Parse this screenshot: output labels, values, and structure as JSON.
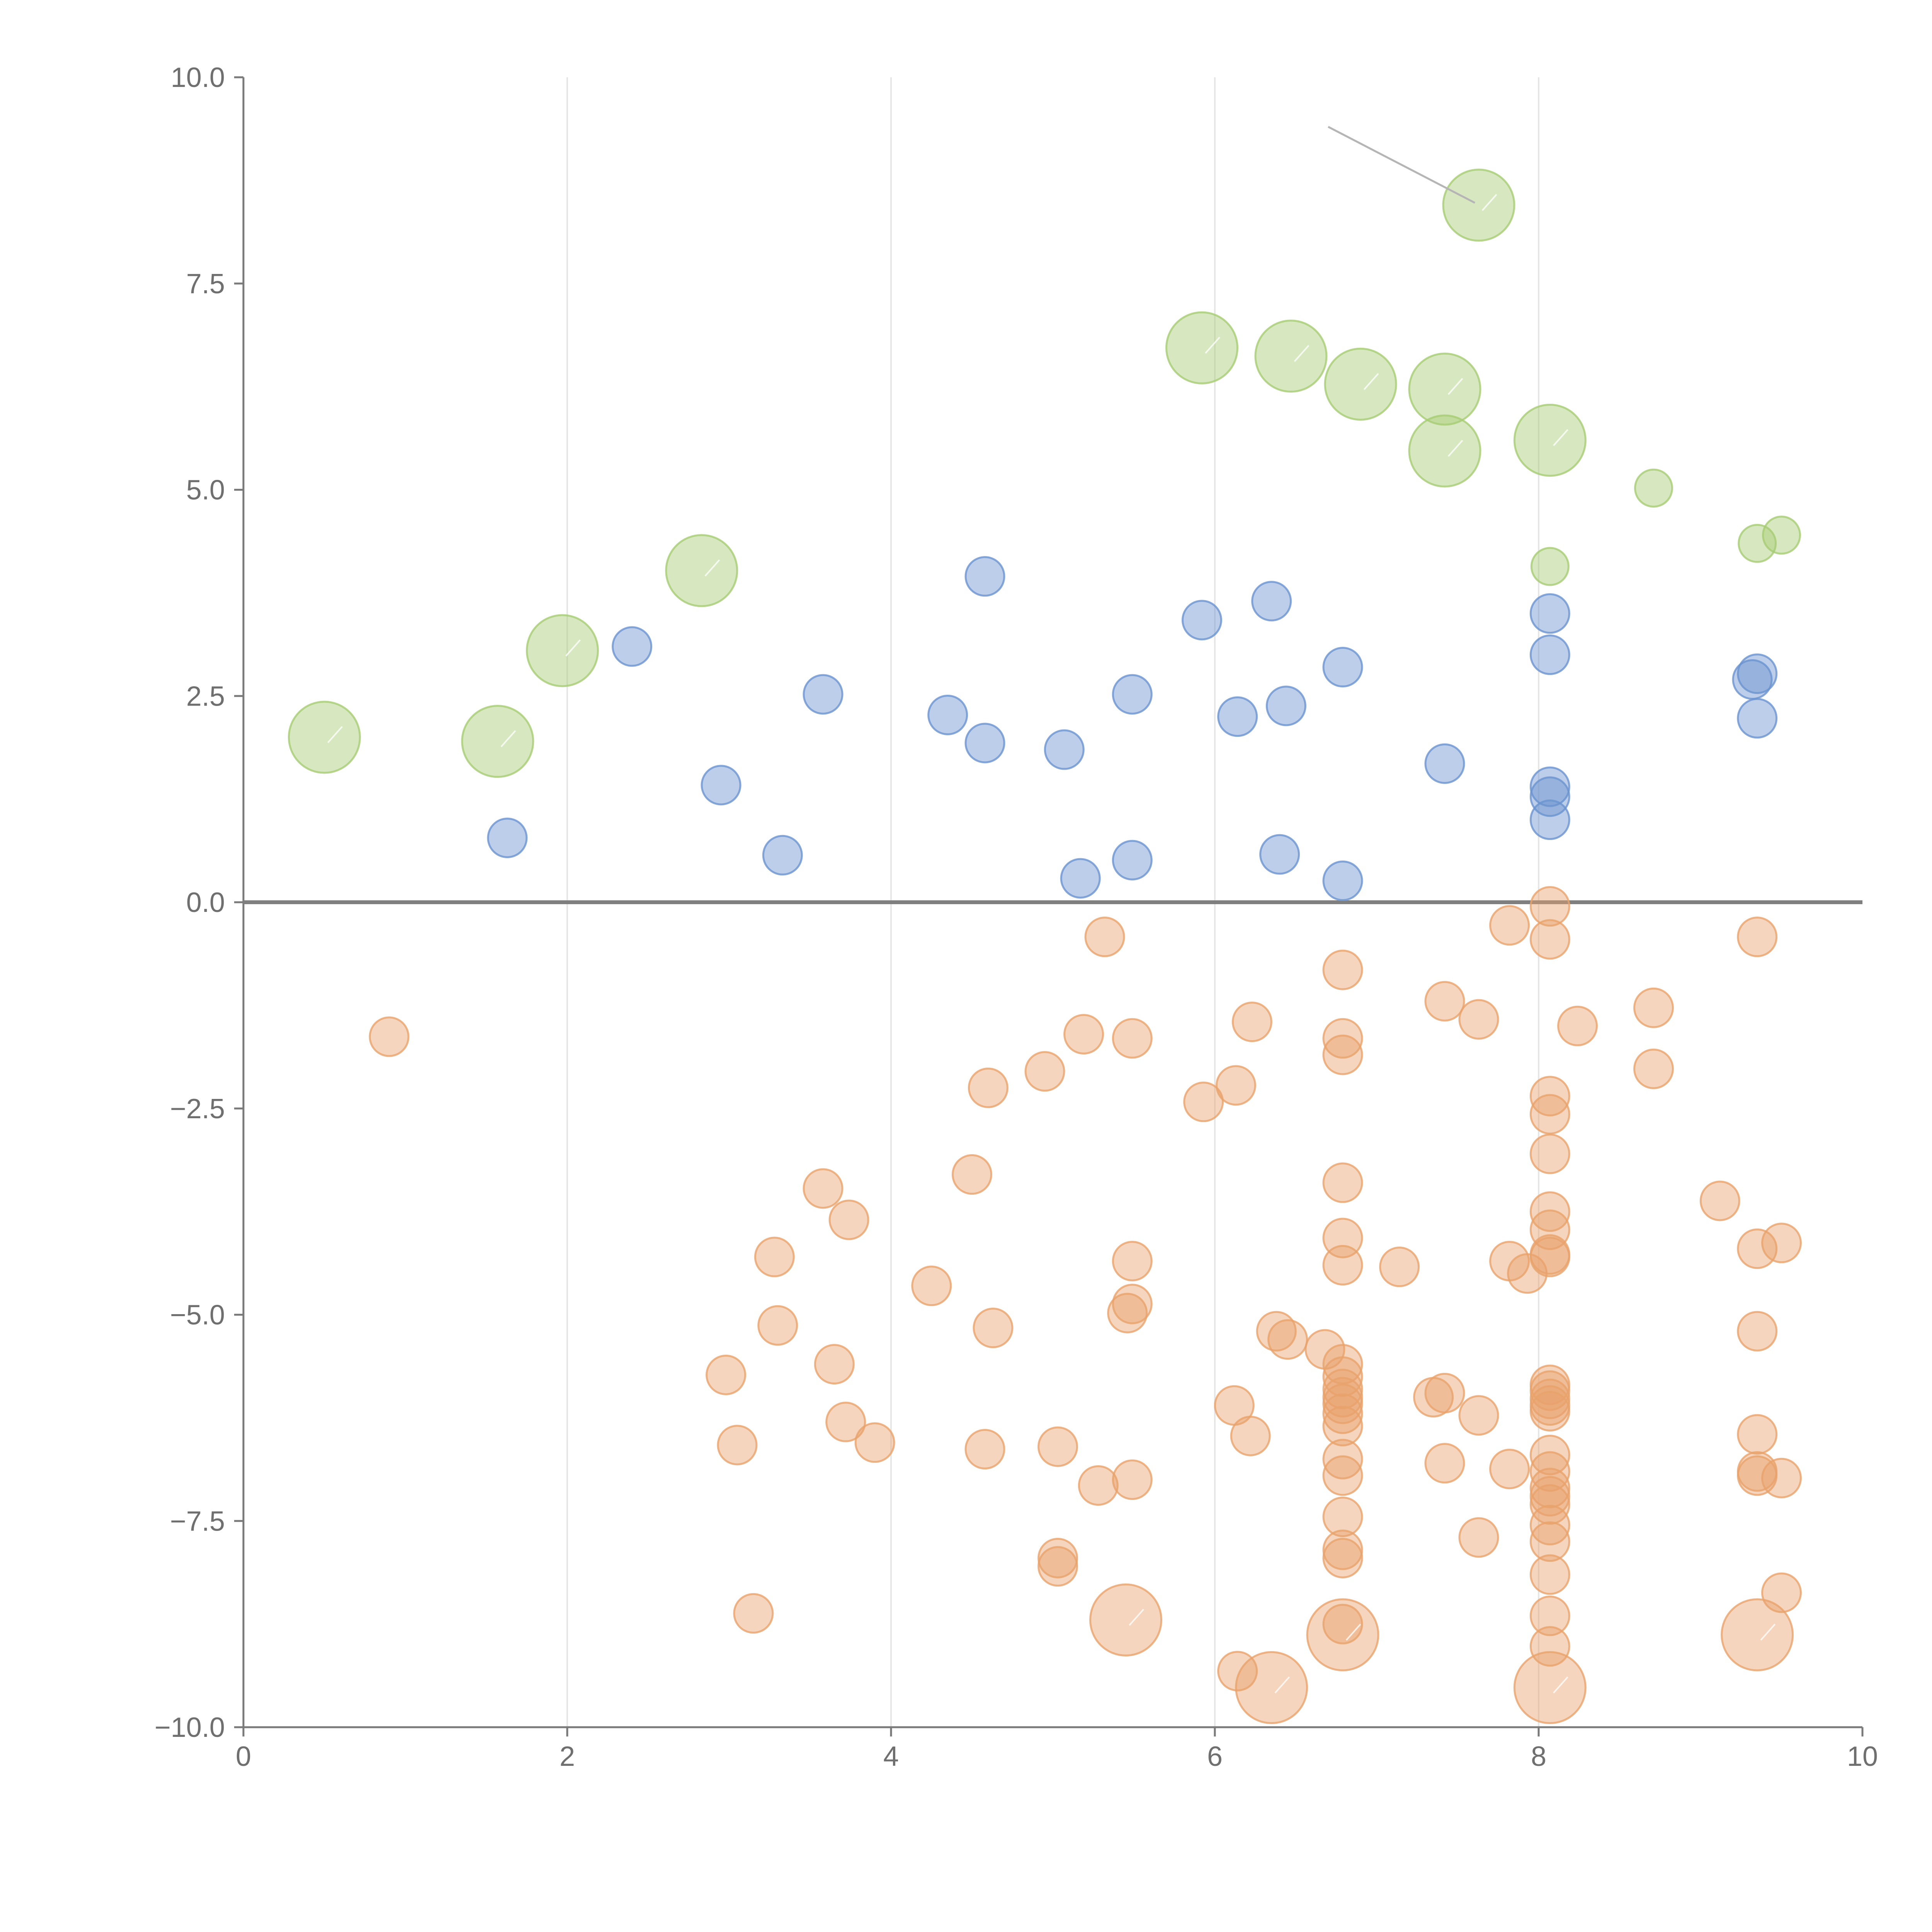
{
  "chart_data": {
    "type": "scatter",
    "title": "",
    "xlabel": "",
    "ylabel": "",
    "xlim": [
      0,
      10
    ],
    "ylim": [
      -10,
      10
    ],
    "x_ticks": [
      0,
      2,
      4,
      6,
      8,
      10
    ],
    "x_tick_labels": [
      "0",
      "2",
      "4",
      "6",
      "8",
      "10"
    ],
    "y_ticks": [
      -10,
      -7.5,
      -5,
      -2.5,
      0,
      2.5,
      5,
      7.5,
      10
    ],
    "y_tick_labels": [
      "−10.0",
      "−7.5",
      "−5.0",
      "−2.5",
      "0.0",
      "2.5",
      "5.0",
      "7.5",
      "10.0"
    ],
    "grid": "vertical",
    "zero_line": true,
    "series": [
      {
        "name": "green",
        "color": "#a6cc73",
        "points": [
          {
            "x": 0.5,
            "y": 2.0,
            "size": 2
          },
          {
            "x": 1.57,
            "y": 1.95,
            "size": 2
          },
          {
            "x": 1.97,
            "y": 3.05,
            "size": 2
          },
          {
            "x": 2.83,
            "y": 4.02,
            "size": 2
          },
          {
            "x": 5.92,
            "y": 6.72,
            "size": 2
          },
          {
            "x": 6.47,
            "y": 6.62,
            "size": 2
          },
          {
            "x": 6.9,
            "y": 6.28,
            "size": 2
          },
          {
            "x": 7.42,
            "y": 6.22,
            "size": 2
          },
          {
            "x": 7.42,
            "y": 5.47,
            "size": 2
          },
          {
            "x": 8.07,
            "y": 5.6,
            "size": 2
          },
          {
            "x": 7.63,
            "y": 8.45,
            "size": 2
          },
          {
            "x": 8.71,
            "y": 5.02,
            "size": 1
          },
          {
            "x": 9.35,
            "y": 4.35,
            "size": 1
          },
          {
            "x": 9.5,
            "y": 4.45,
            "size": 1
          },
          {
            "x": 8.07,
            "y": 4.07,
            "size": 1
          }
        ]
      },
      {
        "name": "blue",
        "color": "#6a93cf",
        "points": [
          {
            "x": 1.63,
            "y": 0.78
          },
          {
            "x": 2.4,
            "y": 3.1
          },
          {
            "x": 2.95,
            "y": 1.42
          },
          {
            "x": 3.33,
            "y": 0.57
          },
          {
            "x": 3.58,
            "y": 2.52
          },
          {
            "x": 4.35,
            "y": 2.27
          },
          {
            "x": 4.58,
            "y": 1.93
          },
          {
            "x": 4.58,
            "y": 3.95
          },
          {
            "x": 5.07,
            "y": 1.85
          },
          {
            "x": 5.17,
            "y": 0.29
          },
          {
            "x": 5.49,
            "y": 0.51
          },
          {
            "x": 5.49,
            "y": 2.52
          },
          {
            "x": 5.92,
            "y": 3.42
          },
          {
            "x": 6.14,
            "y": 2.25
          },
          {
            "x": 6.35,
            "y": 3.65
          },
          {
            "x": 6.4,
            "y": 0.58
          },
          {
            "x": 6.44,
            "y": 2.38
          },
          {
            "x": 6.79,
            "y": 2.85
          },
          {
            "x": 6.79,
            "y": 0.26
          },
          {
            "x": 7.42,
            "y": 1.68
          },
          {
            "x": 8.07,
            "y": 3.5
          },
          {
            "x": 8.07,
            "y": 3.0
          },
          {
            "x": 8.07,
            "y": 1.4
          },
          {
            "x": 8.07,
            "y": 1.28
          },
          {
            "x": 8.07,
            "y": 1.0
          },
          {
            "x": 9.32,
            "y": 2.7
          },
          {
            "x": 9.35,
            "y": 2.77
          },
          {
            "x": 9.35,
            "y": 2.23
          }
        ]
      },
      {
        "name": "orange",
        "color": "#e8a26c",
        "points": [
          {
            "x": 0.9,
            "y": -1.63
          },
          {
            "x": 2.98,
            "y": -5.73
          },
          {
            "x": 3.05,
            "y": -6.58
          },
          {
            "x": 3.15,
            "y": -8.62
          },
          {
            "x": 3.28,
            "y": -4.3
          },
          {
            "x": 3.3,
            "y": -5.13
          },
          {
            "x": 3.58,
            "y": -3.47
          },
          {
            "x": 3.65,
            "y": -5.6
          },
          {
            "x": 3.72,
            "y": -6.3
          },
          {
            "x": 3.74,
            "y": -3.85
          },
          {
            "x": 3.9,
            "y": -6.55
          },
          {
            "x": 4.25,
            "y": -4.65
          },
          {
            "x": 4.5,
            "y": -3.3
          },
          {
            "x": 4.58,
            "y": -6.63
          },
          {
            "x": 4.6,
            "y": -2.25
          },
          {
            "x": 4.63,
            "y": -5.16
          },
          {
            "x": 4.95,
            "y": -2.05
          },
          {
            "x": 5.03,
            "y": -6.6
          },
          {
            "x": 5.03,
            "y": -7.95
          },
          {
            "x": 5.03,
            "y": -8.05
          },
          {
            "x": 5.19,
            "y": -1.6
          },
          {
            "x": 5.28,
            "y": -7.07
          },
          {
            "x": 5.32,
            "y": -0.42
          },
          {
            "x": 5.46,
            "y": -4.98
          },
          {
            "x": 5.49,
            "y": -4.87
          },
          {
            "x": 5.49,
            "y": -4.35
          },
          {
            "x": 5.49,
            "y": -1.65
          },
          {
            "x": 5.49,
            "y": -7.0
          },
          {
            "x": 5.93,
            "y": -2.42
          },
          {
            "x": 6.13,
            "y": -2.22
          },
          {
            "x": 6.12,
            "y": -6.1
          },
          {
            "x": 6.14,
            "y": -9.32
          },
          {
            "x": 6.22,
            "y": -6.47
          },
          {
            "x": 6.23,
            "y": -1.45
          },
          {
            "x": 6.38,
            "y": -5.2
          },
          {
            "x": 6.45,
            "y": -5.3
          },
          {
            "x": 6.68,
            "y": -5.42
          },
          {
            "x": 6.79,
            "y": -0.82
          },
          {
            "x": 6.79,
            "y": -1.65
          },
          {
            "x": 6.79,
            "y": -1.85
          },
          {
            "x": 6.79,
            "y": -3.4
          },
          {
            "x": 6.79,
            "y": -4.07
          },
          {
            "x": 6.79,
            "y": -4.4
          },
          {
            "x": 6.79,
            "y": -5.6
          },
          {
            "x": 6.79,
            "y": -5.75
          },
          {
            "x": 6.79,
            "y": -5.9
          },
          {
            "x": 6.79,
            "y": -6.0
          },
          {
            "x": 6.79,
            "y": -6.08
          },
          {
            "x": 6.79,
            "y": -6.2
          },
          {
            "x": 6.79,
            "y": -6.35
          },
          {
            "x": 6.79,
            "y": -6.75
          },
          {
            "x": 6.79,
            "y": -6.95
          },
          {
            "x": 6.79,
            "y": -7.45
          },
          {
            "x": 6.79,
            "y": -7.85
          },
          {
            "x": 6.79,
            "y": -7.95
          },
          {
            "x": 6.79,
            "y": -8.75
          },
          {
            "x": 7.14,
            "y": -4.42
          },
          {
            "x": 7.35,
            "y": -6.0
          },
          {
            "x": 7.42,
            "y": -1.2
          },
          {
            "x": 7.42,
            "y": -5.95
          },
          {
            "x": 7.42,
            "y": -6.8
          },
          {
            "x": 7.63,
            "y": -1.42
          },
          {
            "x": 7.63,
            "y": -6.22
          },
          {
            "x": 7.63,
            "y": -7.7
          },
          {
            "x": 7.82,
            "y": -0.28
          },
          {
            "x": 7.82,
            "y": -4.35
          },
          {
            "x": 7.82,
            "y": -6.87
          },
          {
            "x": 7.93,
            "y": -4.5
          },
          {
            "x": 8.07,
            "y": -0.05
          },
          {
            "x": 8.07,
            "y": -0.45
          },
          {
            "x": 8.07,
            "y": -2.35
          },
          {
            "x": 8.07,
            "y": -2.57
          },
          {
            "x": 8.07,
            "y": -3.05
          },
          {
            "x": 8.07,
            "y": -3.75
          },
          {
            "x": 8.07,
            "y": -3.97
          },
          {
            "x": 8.07,
            "y": -4.27
          },
          {
            "x": 8.07,
            "y": -4.3
          },
          {
            "x": 8.07,
            "y": -5.85
          },
          {
            "x": 8.07,
            "y": -5.92
          },
          {
            "x": 8.07,
            "y": -6.02
          },
          {
            "x": 8.07,
            "y": -6.1
          },
          {
            "x": 8.07,
            "y": -6.17
          },
          {
            "x": 8.07,
            "y": -6.7
          },
          {
            "x": 8.07,
            "y": -6.9
          },
          {
            "x": 8.07,
            "y": -7.1
          },
          {
            "x": 8.07,
            "y": -7.2
          },
          {
            "x": 8.07,
            "y": -7.3
          },
          {
            "x": 8.07,
            "y": -7.55
          },
          {
            "x": 8.07,
            "y": -7.75
          },
          {
            "x": 8.07,
            "y": -8.15
          },
          {
            "x": 8.07,
            "y": -8.65
          },
          {
            "x": 8.07,
            "y": -9.02
          },
          {
            "x": 8.24,
            "y": -1.5
          },
          {
            "x": 8.71,
            "y": -1.28
          },
          {
            "x": 8.71,
            "y": -2.02
          },
          {
            "x": 9.12,
            "y": -3.62
          },
          {
            "x": 9.35,
            "y": -0.42
          },
          {
            "x": 9.35,
            "y": -4.2
          },
          {
            "x": 9.35,
            "y": -5.2
          },
          {
            "x": 9.35,
            "y": -6.45
          },
          {
            "x": 9.35,
            "y": -6.9
          },
          {
            "x": 9.35,
            "y": -6.95
          },
          {
            "x": 9.5,
            "y": -4.13
          },
          {
            "x": 9.5,
            "y": -6.98
          },
          {
            "x": 9.5,
            "y": -8.37
          },
          {
            "x": 5.45,
            "y": -8.7,
            "size": 2
          },
          {
            "x": 6.35,
            "y": -9.52,
            "size": 2
          },
          {
            "x": 6.79,
            "y": -8.88,
            "size": 2
          },
          {
            "x": 8.07,
            "y": -9.52,
            "size": 2
          },
          {
            "x": 9.35,
            "y": -8.88,
            "size": 2
          }
        ]
      }
    ]
  }
}
